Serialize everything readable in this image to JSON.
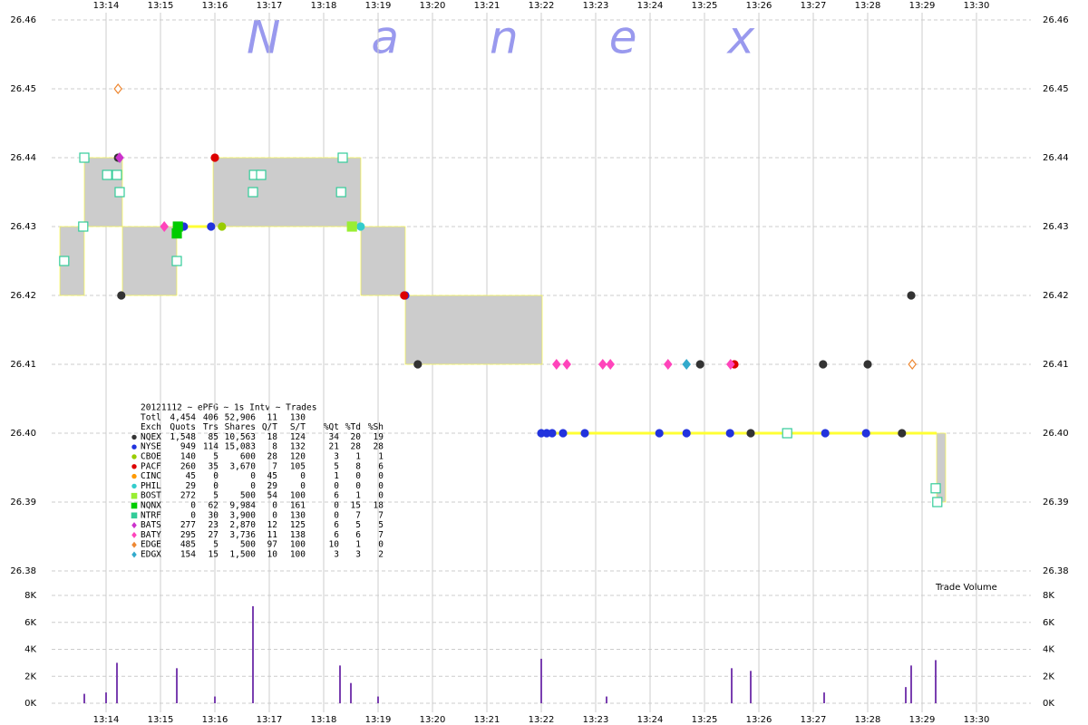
{
  "chart_data": {
    "type": "tick-chart",
    "watermark": "Nanex",
    "xlim": [
      793,
      811
    ],
    "xticks": [
      {
        "value": 794,
        "label": "13:14"
      },
      {
        "value": 795,
        "label": "13:15"
      },
      {
        "value": 796,
        "label": "13:16"
      },
      {
        "value": 797,
        "label": "13:17"
      },
      {
        "value": 798,
        "label": "13:18"
      },
      {
        "value": 799,
        "label": "13:19"
      },
      {
        "value": 800,
        "label": "13:20"
      },
      {
        "value": 801,
        "label": "13:21"
      },
      {
        "value": 802,
        "label": "13:22"
      },
      {
        "value": 803,
        "label": "13:23"
      },
      {
        "value": 804,
        "label": "13:24"
      },
      {
        "value": 805,
        "label": "13:25"
      },
      {
        "value": 806,
        "label": "13:26"
      },
      {
        "value": 807,
        "label": "13:27"
      },
      {
        "value": 808,
        "label": "13:28"
      },
      {
        "value": 809,
        "label": "13:29"
      },
      {
        "value": 810,
        "label": "13:30"
      }
    ],
    "ylim": [
      26.38,
      26.46
    ],
    "yticks": [
      26.38,
      26.39,
      {
        "value": 26.4,
        "label": "26.40"
      },
      26.41,
      26.42,
      26.43,
      26.44,
      26.45,
      26.46
    ],
    "quotes": {
      "x0": [
        793.15,
        793.6,
        794.3,
        795.3,
        795.967,
        798.683,
        799.5,
        802.017,
        809.267
      ],
      "x1": [
        793.6,
        794.3,
        795.3,
        795.967,
        798.683,
        799.5,
        802.017,
        809.267,
        809.433
      ],
      "bid": [
        26.42,
        26.43,
        26.42,
        26.43,
        26.43,
        26.42,
        26.41,
        26.4,
        26.39
      ],
      "ask": [
        26.43,
        26.44,
        26.43,
        26.43,
        26.44,
        26.43,
        26.42,
        26.4,
        26.4
      ],
      "color": "#cccccc",
      "locked_color": "#ffff33"
    },
    "stats": {
      "title": "20121112 ~ ePFG ~ 1s Intv ~ Trades",
      "columns": [
        "Exch",
        "Quots",
        "Trs",
        "Shares",
        "Q/T",
        "S/T",
        "%Qt",
        "%Td",
        "%Sh"
      ],
      "total": [
        "Totl",
        "4,454",
        "406",
        "52,906",
        "11",
        "130"
      ]
    },
    "series": [
      {
        "name": "NQEX",
        "color": "#333333",
        "marker": "circle",
        "filled": true,
        "stats": [
          "1,548",
          "85",
          "10,563",
          "18",
          "124",
          "34",
          "20",
          "19"
        ],
        "x": [
          794.22,
          794.28,
          799.73,
          804.92,
          805.85,
          807.18,
          808.0,
          808.63,
          808.8
        ],
        "values": [
          26.44,
          26.42,
          26.41,
          26.41,
          26.4,
          26.41,
          26.41,
          26.4,
          26.42
        ]
      },
      {
        "name": "NYSE",
        "color": "#2233dd",
        "marker": "circle",
        "filled": true,
        "stats": [
          "949",
          "114",
          "15,083",
          "8",
          "132",
          "21",
          "28",
          "28"
        ],
        "x": [
          795.43,
          795.93,
          799.5,
          802.0,
          802.1,
          802.2,
          802.4,
          802.8,
          804.17,
          804.67,
          805.47,
          807.22,
          807.97
        ],
        "values": [
          26.43,
          26.43,
          26.42,
          26.4,
          26.4,
          26.4,
          26.4,
          26.4,
          26.4,
          26.4,
          26.4,
          26.4,
          26.4
        ]
      },
      {
        "name": "CBOE",
        "color": "#99cc00",
        "marker": "circle",
        "filled": true,
        "stats": [
          "140",
          "5",
          "600",
          "28",
          "120",
          "3",
          "1",
          "1"
        ],
        "x": [
          796.13
        ],
        "values": [
          26.43
        ]
      },
      {
        "name": "PACF",
        "color": "#dd0000",
        "marker": "circle",
        "filled": true,
        "stats": [
          "260",
          "35",
          "3,670",
          "7",
          "105",
          "5",
          "8",
          "6"
        ],
        "x": [
          796.0,
          799.48,
          805.55
        ],
        "values": [
          26.44,
          26.42,
          26.41
        ]
      },
      {
        "name": "CINC",
        "color": "#ff9900",
        "marker": "circle",
        "filled": true,
        "stats": [
          "45",
          "0",
          "0",
          "45",
          "0",
          "1",
          "0",
          "0"
        ],
        "x": [],
        "values": []
      },
      {
        "name": "PHIL",
        "color": "#33cccc",
        "marker": "circle",
        "filled": true,
        "stats": [
          "29",
          "0",
          "0",
          "29",
          "0",
          "0",
          "0",
          "0"
        ],
        "x": [
          798.68
        ],
        "values": [
          26.43
        ]
      },
      {
        "name": "BOST",
        "color": "#99ee33",
        "marker": "square",
        "filled": true,
        "stats": [
          "272",
          "5",
          "500",
          "54",
          "100",
          "6",
          "1",
          "0"
        ],
        "x": [
          798.52
        ],
        "values": [
          26.43
        ]
      },
      {
        "name": "NQNX",
        "color": "#00cc00",
        "marker": "square",
        "filled": true,
        "stats": [
          "0",
          "62",
          "9,984",
          "0",
          "161",
          "0",
          "15",
          "18"
        ],
        "x": [
          795.3,
          795.32
        ],
        "values": [
          26.429,
          26.43
        ]
      },
      {
        "name": "NTRF",
        "color": "#33cc99",
        "marker": "square",
        "filled": false,
        "stats": [
          "0",
          "30",
          "3,900",
          "0",
          "130",
          "0",
          "7",
          "7"
        ],
        "x": [
          793.23,
          793.58,
          793.6,
          794.02,
          794.2,
          794.25,
          795.3,
          796.7,
          796.72,
          796.85,
          798.32,
          798.35,
          806.52,
          809.25,
          809.28
        ],
        "values": [
          26.425,
          26.43,
          26.44,
          26.4375,
          26.4375,
          26.435,
          26.425,
          26.435,
          26.4375,
          26.4375,
          26.435,
          26.44,
          26.4,
          26.392,
          26.39
        ]
      },
      {
        "name": "BATS",
        "color": "#cc33cc",
        "marker": "diamond",
        "filled": true,
        "stats": [
          "277",
          "23",
          "2,870",
          "12",
          "125",
          "6",
          "5",
          "5"
        ],
        "x": [
          794.25
        ],
        "values": [
          26.44
        ]
      },
      {
        "name": "BATY",
        "color": "#ff44bb",
        "marker": "diamond",
        "filled": true,
        "stats": [
          "295",
          "27",
          "3,736",
          "11",
          "138",
          "6",
          "6",
          "7"
        ],
        "x": [
          795.07,
          802.28,
          802.47,
          803.13,
          803.27,
          804.33,
          805.48
        ],
        "values": [
          26.43,
          26.41,
          26.41,
          26.41,
          26.41,
          26.41,
          26.41
        ]
      },
      {
        "name": "EDGE",
        "color": "#ee8833",
        "marker": "diamond",
        "filled": false,
        "stats": [
          "485",
          "5",
          "500",
          "97",
          "100",
          "10",
          "1",
          "0"
        ],
        "x": [
          794.22,
          808.82
        ],
        "values": [
          26.45,
          26.41
        ]
      },
      {
        "name": "EDGX",
        "color": "#33aacc",
        "marker": "diamond",
        "filled": true,
        "stats": [
          "154",
          "15",
          "1,500",
          "10",
          "100",
          "3",
          "3",
          "2"
        ],
        "x": [
          804.67
        ],
        "values": [
          26.41
        ]
      }
    ],
    "volume": {
      "label": "Trade Volume",
      "color": "#7a3fb0",
      "ylim": [
        0,
        8000
      ],
      "yticks": [
        {
          "value": 0,
          "label": "0K"
        },
        {
          "value": 2000,
          "label": "2K"
        },
        {
          "value": 4000,
          "label": "4K"
        },
        {
          "value": 6000,
          "label": "6K"
        },
        {
          "value": 8000,
          "label": "8K"
        }
      ],
      "x": [
        793.6,
        794.0,
        794.2,
        795.3,
        796.0,
        796.7,
        798.3,
        798.5,
        799.0,
        802.0,
        803.2,
        805.5,
        805.85,
        807.2,
        808.7,
        808.8,
        809.25
      ],
      "values": [
        700,
        800,
        3000,
        2600,
        500,
        7200,
        2800,
        1500,
        500,
        3300,
        500,
        2600,
        2400,
        800,
        1200,
        2800,
        3200
      ]
    }
  }
}
